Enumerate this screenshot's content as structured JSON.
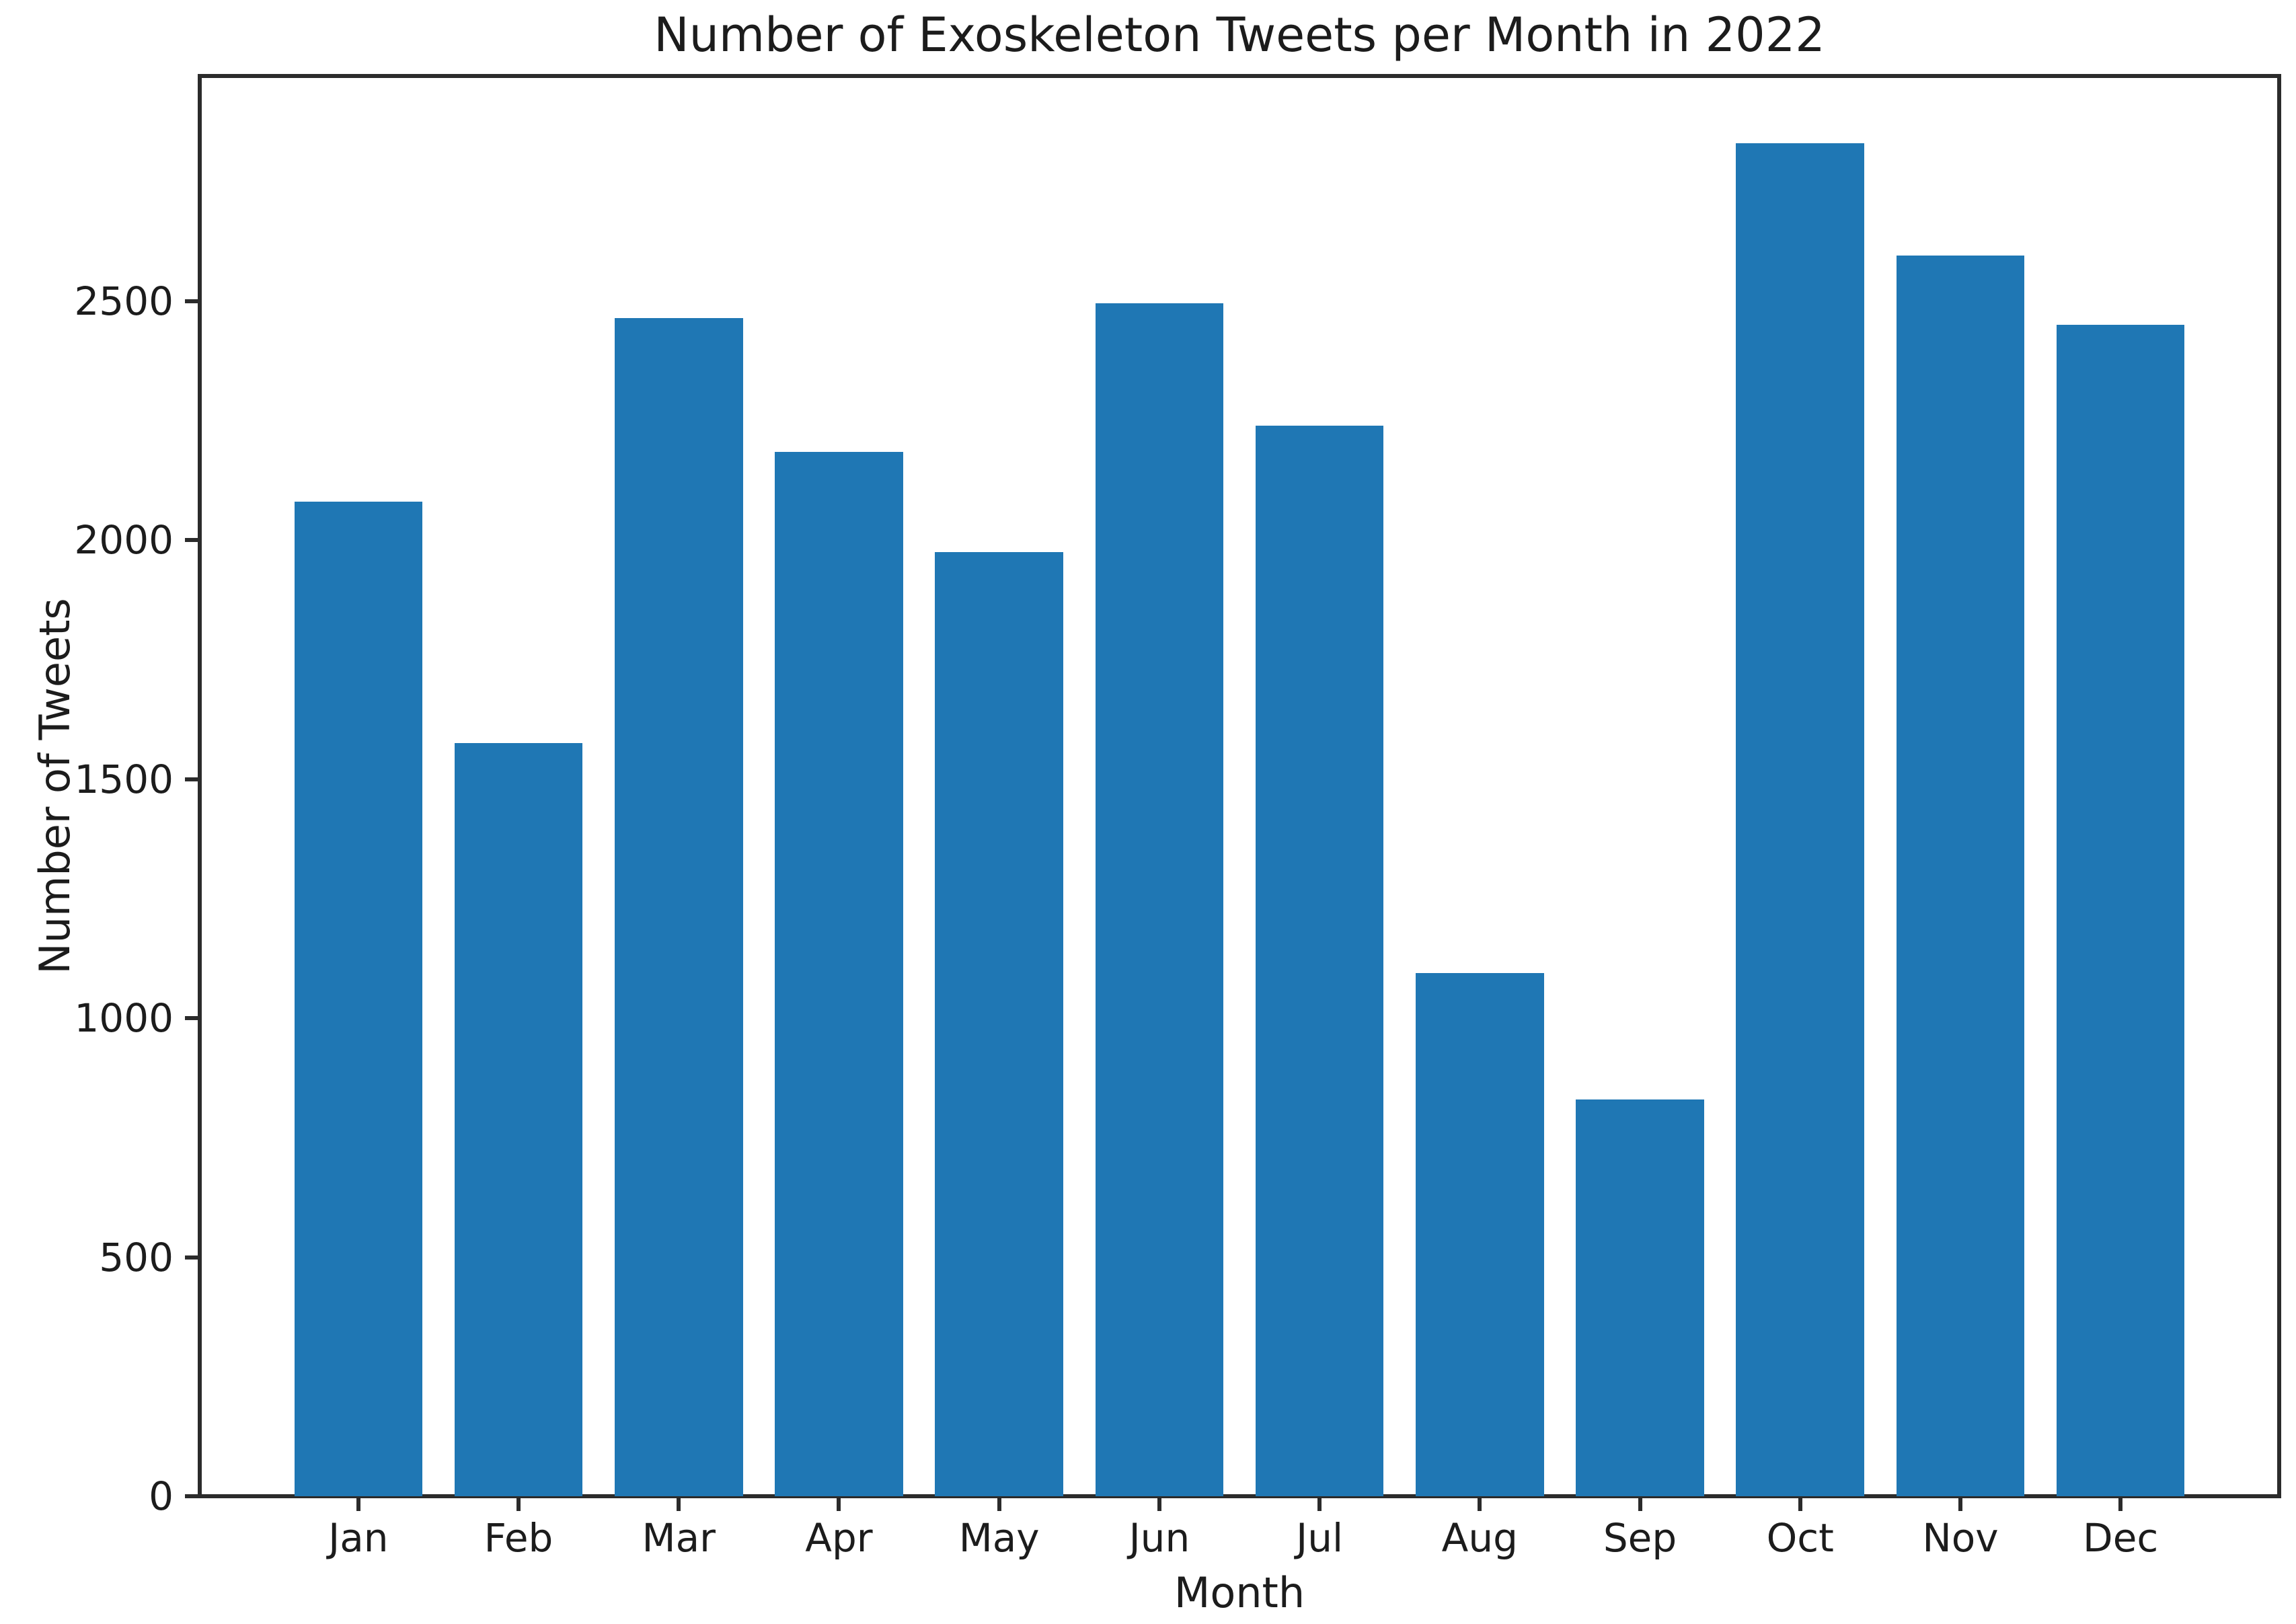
{
  "chart_data": {
    "type": "bar",
    "title": "Number of Exoskeleton Tweets per Month in 2022",
    "xlabel": "Month",
    "ylabel": "Number of Tweets",
    "categories": [
      "Jan",
      "Feb",
      "Mar",
      "Apr",
      "May",
      "Jun",
      "Jul",
      "Aug",
      "Sep",
      "Oct",
      "Nov",
      "Dec"
    ],
    "values": [
      2080,
      1575,
      2465,
      2185,
      1975,
      2495,
      2240,
      1095,
      830,
      2830,
      2595,
      2450
    ],
    "yticks": [
      0,
      500,
      1000,
      1500,
      2000,
      2500
    ],
    "ylim": [
      0,
      2971
    ],
    "xlim": [
      -0.99,
      11.99
    ],
    "bar_width_units": 0.8,
    "bar_color": "#1f77b4",
    "axis_color": "#2b2b2b",
    "text_color": "#1c1c1c",
    "grid": false,
    "legend": "none"
  }
}
